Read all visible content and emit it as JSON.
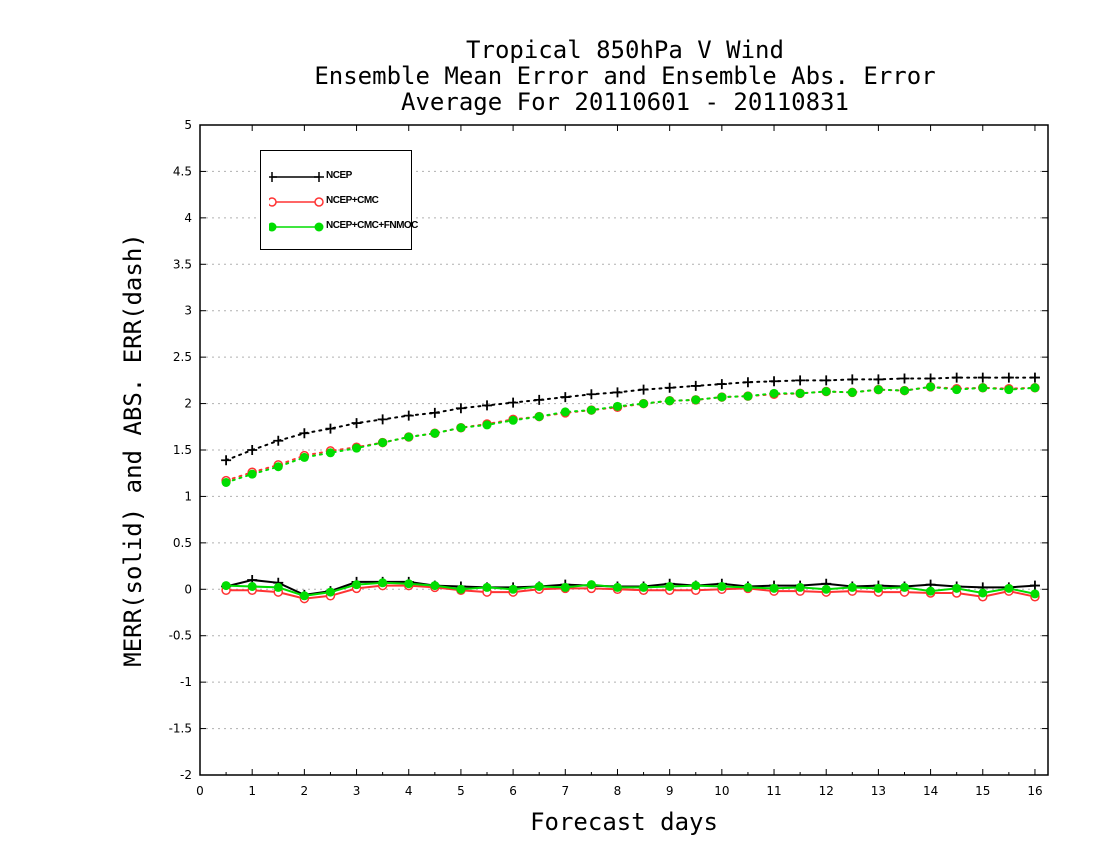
{
  "title_lines": [
    "Tropical 850hPa V Wind",
    "Ensemble Mean Error and Ensemble Abs. Error",
    "Average For 20110601 - 20110831"
  ],
  "chart_data": {
    "type": "line",
    "title": "Tropical 850hPa V Wind / Ensemble Mean Error and Ensemble Abs. Error / Average For 20110601 - 20110831",
    "xlabel": "Forecast days",
    "ylabel": "MERR(solid) and ABS. ERR(dash)",
    "xlim": [
      0,
      16.25
    ],
    "ylim": [
      -2,
      5
    ],
    "xticks": [
      "0",
      "1",
      "2",
      "3",
      "4",
      "5",
      "6",
      "7",
      "8",
      "9",
      "10",
      "11",
      "12",
      "13",
      "14",
      "15",
      "16"
    ],
    "yticks": [
      "5",
      "4.5",
      "4",
      "3.5",
      "3",
      "2.5",
      "2",
      "1.5",
      "1",
      "0.5",
      "0",
      "-0.5",
      "-1",
      "-1.5",
      "-2"
    ],
    "grid": true,
    "legend_position": "top-left",
    "x": [
      0.5,
      1,
      1.5,
      2,
      2.5,
      3,
      3.5,
      4,
      4.5,
      5,
      5.5,
      6,
      6.5,
      7,
      7.5,
      8,
      8.5,
      9,
      9.5,
      10,
      10.5,
      11,
      11.5,
      12,
      12.5,
      13,
      13.5,
      14,
      14.5,
      15,
      15.5,
      16
    ],
    "series": [
      {
        "name": "NCEP",
        "color": "#000000",
        "marker": "plus",
        "merr": [
          0.03,
          0.1,
          0.07,
          -0.06,
          -0.02,
          0.08,
          0.08,
          0.08,
          0.04,
          0.03,
          0.02,
          0.02,
          0.03,
          0.05,
          0.04,
          0.03,
          0.03,
          0.06,
          0.04,
          0.06,
          0.03,
          0.04,
          0.04,
          0.06,
          0.03,
          0.04,
          0.03,
          0.05,
          0.03,
          0.02,
          0.02,
          0.04
        ],
        "abs_err": [
          1.39,
          1.5,
          1.6,
          1.68,
          1.73,
          1.79,
          1.83,
          1.87,
          1.9,
          1.95,
          1.98,
          2.01,
          2.04,
          2.07,
          2.1,
          2.12,
          2.15,
          2.17,
          2.19,
          2.21,
          2.23,
          2.24,
          2.25,
          2.25,
          2.26,
          2.26,
          2.27,
          2.27,
          2.28,
          2.28,
          2.28,
          2.28
        ]
      },
      {
        "name": "NCEP+CMC",
        "color": "#ff3333",
        "marker": "open-circle",
        "merr": [
          -0.01,
          -0.01,
          -0.03,
          -0.1,
          -0.07,
          0.01,
          0.04,
          0.04,
          0.02,
          -0.01,
          -0.03,
          -0.03,
          0.0,
          0.01,
          0.01,
          0.0,
          -0.01,
          -0.01,
          -0.01,
          0.0,
          0.01,
          -0.02,
          -0.02,
          -0.03,
          -0.02,
          -0.03,
          -0.03,
          -0.04,
          -0.04,
          -0.08,
          -0.02,
          -0.08
        ],
        "abs_err": [
          1.17,
          1.26,
          1.34,
          1.44,
          1.49,
          1.53,
          1.58,
          1.64,
          1.68,
          1.74,
          1.78,
          1.83,
          1.86,
          1.9,
          1.93,
          1.96,
          2.0,
          2.03,
          2.04,
          2.07,
          2.08,
          2.1,
          2.11,
          2.13,
          2.12,
          2.15,
          2.14,
          2.18,
          2.16,
          2.17,
          2.16,
          2.17
        ]
      },
      {
        "name": "NCEP+CMC+FNMOC",
        "color": "#00dd00",
        "marker": "filled-circle",
        "merr": [
          0.04,
          0.03,
          0.02,
          -0.07,
          -0.03,
          0.05,
          0.07,
          0.06,
          0.04,
          0.0,
          0.02,
          0.0,
          0.03,
          0.02,
          0.05,
          0.02,
          0.02,
          0.03,
          0.04,
          0.03,
          0.02,
          0.01,
          0.02,
          0.0,
          0.02,
          0.01,
          0.02,
          -0.02,
          0.01,
          -0.04,
          0.01,
          -0.05
        ],
        "abs_err": [
          1.15,
          1.24,
          1.32,
          1.42,
          1.47,
          1.52,
          1.58,
          1.64,
          1.68,
          1.74,
          1.77,
          1.82,
          1.86,
          1.91,
          1.93,
          1.97,
          2.0,
          2.03,
          2.04,
          2.07,
          2.08,
          2.11,
          2.11,
          2.13,
          2.12,
          2.15,
          2.14,
          2.18,
          2.15,
          2.17,
          2.15,
          2.17
        ]
      }
    ]
  }
}
